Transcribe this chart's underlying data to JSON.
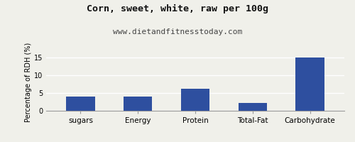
{
  "title": "Corn, sweet, white, raw per 100g",
  "subtitle": "www.dietandfitnesstoday.com",
  "categories": [
    "sugars",
    "Energy",
    "Protein",
    "Total-Fat",
    "Carbohydrate"
  ],
  "values": [
    4.0,
    4.0,
    6.3,
    2.2,
    15.0
  ],
  "bar_color": "#2e4f9f",
  "ylabel": "Percentage of RDH (%)",
  "ylim": [
    0,
    16
  ],
  "yticks": [
    0,
    5,
    10,
    15
  ],
  "background_color": "#f0f0ea",
  "title_fontsize": 9.5,
  "subtitle_fontsize": 8,
  "ylabel_fontsize": 7,
  "xlabel_fontsize": 7.5
}
